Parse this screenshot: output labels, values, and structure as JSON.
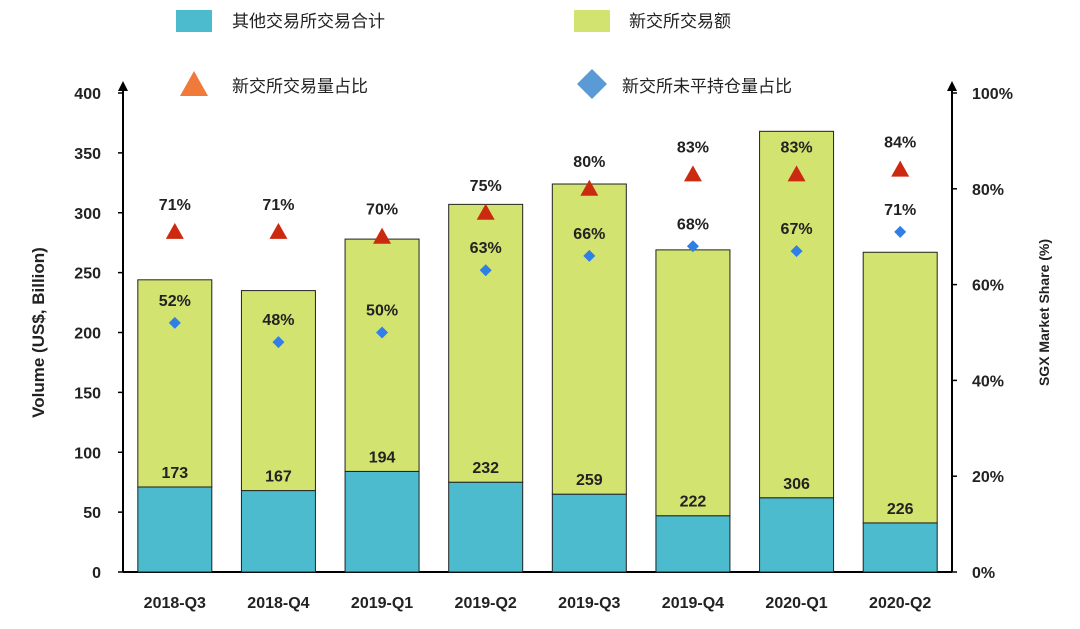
{
  "chart_data": {
    "type": "bar",
    "categories": [
      "2018-Q3",
      "2018-Q4",
      "2019-Q1",
      "2019-Q2",
      "2019-Q3",
      "2019-Q4",
      "2020-Q1",
      "2020-Q2"
    ],
    "series": [
      {
        "name": "其他交易所交易合计",
        "kind": "stacked-bar",
        "color": "#4bbbcd",
        "values": [
          71,
          68,
          84,
          75,
          65,
          47,
          62,
          41
        ]
      },
      {
        "name": "新交所交易额",
        "kind": "stacked-bar",
        "color": "#d3e36f",
        "values": [
          173,
          167,
          194,
          232,
          259,
          222,
          306,
          226
        ],
        "labels": [
          "173",
          "167",
          "194",
          "232",
          "259",
          "222",
          "306",
          "226"
        ]
      },
      {
        "name": "新交所交易量占比",
        "kind": "marker",
        "marker": "triangle",
        "axis": "right",
        "color": "#cc2a10",
        "legend_color": "#f07a3a",
        "values": [
          71,
          71,
          70,
          75,
          80,
          83,
          83,
          84
        ],
        "labels": [
          "71%",
          "71%",
          "70%",
          "75%",
          "80%",
          "83%",
          "83%",
          "84%"
        ]
      },
      {
        "name": "新交所未平持仓量占比",
        "kind": "marker",
        "marker": "diamond",
        "axis": "right",
        "color": "#2f7fe6",
        "legend_color": "#5b9bd5",
        "values": [
          52,
          48,
          50,
          63,
          66,
          68,
          67,
          71
        ],
        "labels": [
          "52%",
          "48%",
          "50%",
          "63%",
          "66%",
          "68%",
          "67%",
          "71%"
        ]
      }
    ],
    "ylabel": "Volume (US$, Billion)",
    "y2label": "SGX Market Share (%)",
    "ylim": [
      0,
      400
    ],
    "y2lim": [
      0,
      100
    ],
    "yticks": [
      "0",
      "50",
      "100",
      "150",
      "200",
      "250",
      "300",
      "350",
      "400"
    ],
    "y2ticks": [
      "0%",
      "20%",
      "40%",
      "60%",
      "80%",
      "100%"
    ],
    "grid": false,
    "legend_position": "top"
  }
}
